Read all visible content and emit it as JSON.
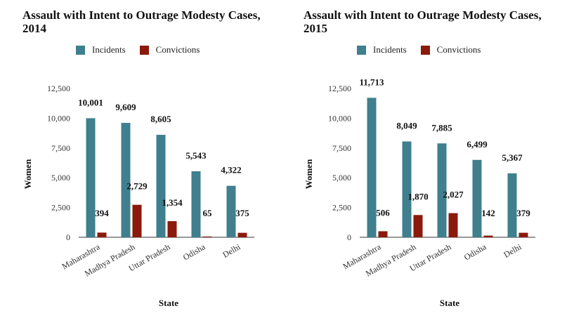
{
  "colors": {
    "incidents": "#3f7f8e",
    "convictions": "#8b1a0c",
    "axis": "#333333"
  },
  "chart_data": [
    {
      "type": "bar",
      "title": "Assault with Intent to Outrage Modesty Cases, 2014",
      "xlabel": "State",
      "ylabel": "Women",
      "ylim": [
        0,
        12500
      ],
      "yticks": [
        0,
        2500,
        5000,
        7500,
        10000,
        12500
      ],
      "ytick_labels": [
        "0",
        "2,500",
        "5,000",
        "7,500",
        "10,000",
        "12,500"
      ],
      "legend_position": "top",
      "categories": [
        "Maharashtra",
        "Madhya Pradesh",
        "Uttar Pradesh",
        "Odisha",
        "Delhi"
      ],
      "series": [
        {
          "name": "Incidents",
          "values": [
            10001,
            9609,
            8605,
            5543,
            4322
          ],
          "labels": [
            "10,001",
            "9,609",
            "8,605",
            "5,543",
            "4,322"
          ]
        },
        {
          "name": "Convictions",
          "values": [
            394,
            2729,
            1354,
            65,
            375
          ],
          "labels": [
            "394",
            "2,729",
            "1,354",
            "65",
            "375"
          ]
        }
      ]
    },
    {
      "type": "bar",
      "title": "Assault with Intent to Outrage Modesty Cases, 2015",
      "xlabel": "State",
      "ylabel": "Women",
      "ylim": [
        0,
        12500
      ],
      "yticks": [
        0,
        2500,
        5000,
        7500,
        10000,
        12500
      ],
      "ytick_labels": [
        "0",
        "2,500",
        "5,000",
        "7,500",
        "10,000",
        "12,500"
      ],
      "legend_position": "top",
      "categories": [
        "Maharashtra",
        "Madhya Pradesh",
        "Uttar Pradesh",
        "Odisha",
        "Delhi"
      ],
      "series": [
        {
          "name": "Incidents",
          "values": [
            11713,
            8049,
            7885,
            6499,
            5367
          ],
          "labels": [
            "11,713",
            "8,049",
            "7,885",
            "6,499",
            "5,367"
          ]
        },
        {
          "name": "Convictions",
          "values": [
            506,
            1870,
            2027,
            142,
            379
          ],
          "labels": [
            "506",
            "1,870",
            "2,027",
            "142",
            "379"
          ]
        }
      ]
    }
  ]
}
